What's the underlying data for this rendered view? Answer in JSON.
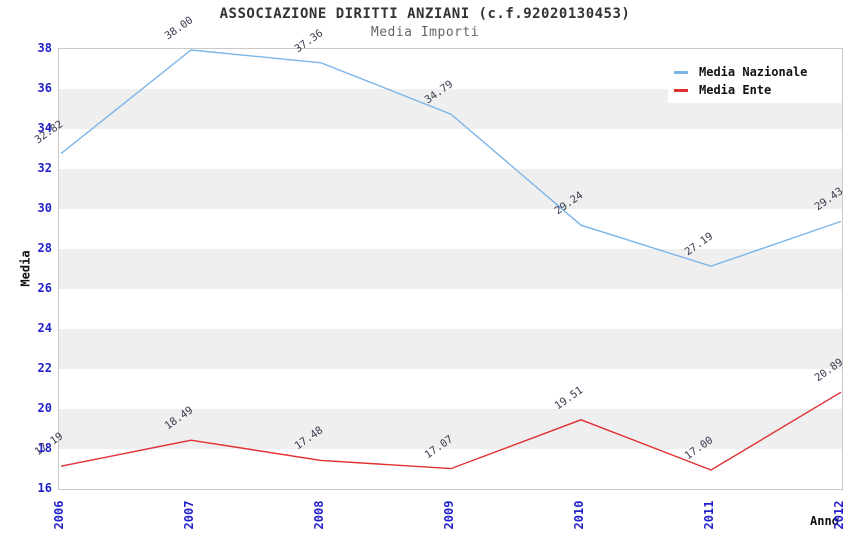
{
  "header": {
    "title": "ASSOCIAZIONE DIRITTI ANZIANI (c.f.92020130453)",
    "subtitle": "Media Importi"
  },
  "axes": {
    "y_title": "Media",
    "x_title": "Anno"
  },
  "colors": {
    "tick_label": "#2222cc",
    "band_gray": "#efefef",
    "plot_border": "#c9c9c9",
    "point_label": "#3b3b52",
    "nazionale_blue": "#7cb5e8",
    "ente_red": "#e03030"
  },
  "chart_data": {
    "type": "line",
    "title": "ASSOCIAZIONE DIRITTI ANZIANI (c.f.92020130453)",
    "subtitle": "Media Importi",
    "xlabel": "Anno",
    "ylabel": "Media",
    "categories": [
      "2006",
      "2007",
      "2008",
      "2009",
      "2010",
      "2011",
      "2012"
    ],
    "series": [
      {
        "name": "Media Nazionale",
        "color": "#7cb5e8",
        "values": [
          32.82,
          38.0,
          37.36,
          34.79,
          29.24,
          27.19,
          29.43
        ]
      },
      {
        "name": "Media Ente",
        "color": "#e03030",
        "values": [
          17.19,
          18.49,
          17.48,
          17.07,
          19.51,
          17.0,
          20.89
        ]
      }
    ],
    "ylim": [
      16,
      38
    ],
    "ytick_step": 2,
    "grid": "alternating-horizontal-bands",
    "legend_position": "top-right",
    "point_labels_visible": true
  }
}
